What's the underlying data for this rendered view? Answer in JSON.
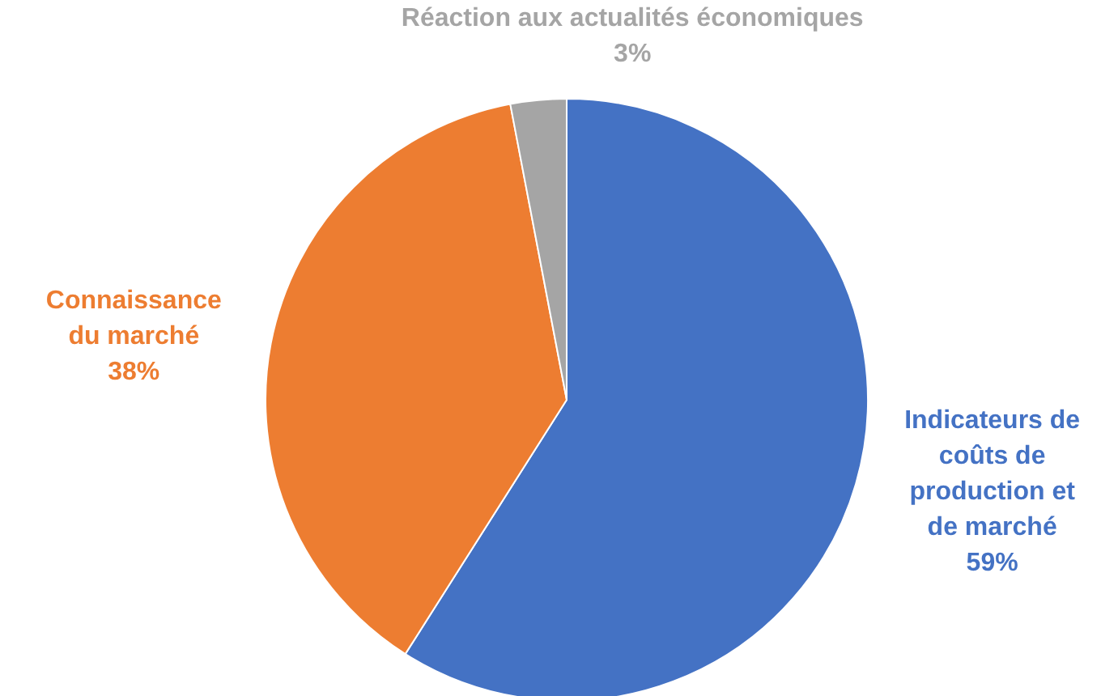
{
  "chart_data": {
    "type": "pie",
    "categories": [
      "Indicateurs de coûts de production et de marché",
      "Connaissance du marché",
      "Réaction aux actualités économiques"
    ],
    "values": [
      59,
      38,
      3
    ],
    "colors": [
      "#4472c4",
      "#ed7d31",
      "#a5a5a5"
    ],
    "value_labels": [
      "59%",
      "38%",
      "3%"
    ],
    "legend": false
  }
}
